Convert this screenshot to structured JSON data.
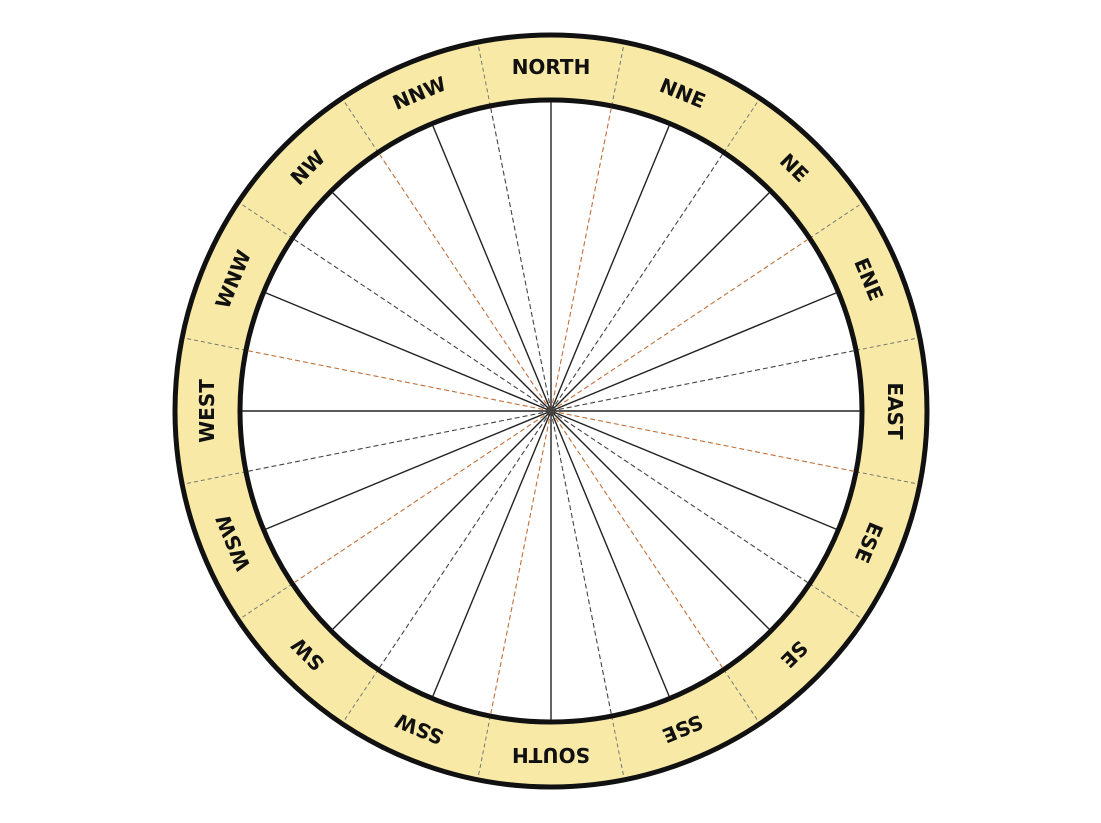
{
  "compass": {
    "directions": [
      "NORTH",
      "NNE",
      "NE",
      "ENE",
      "EAST",
      "ESE",
      "SE",
      "SSE",
      "SOUTH",
      "SSW",
      "SW",
      "WSW",
      "WEST",
      "WNW",
      "NW",
      "NNW"
    ],
    "colors": {
      "ring_fill": "#f8eaa6",
      "ring_stroke": "#111111",
      "solid_line": "#222222",
      "dashed_line_orange": "#c0703a",
      "dashed_line_dark": "#444444",
      "background": "#ffffff"
    }
  }
}
